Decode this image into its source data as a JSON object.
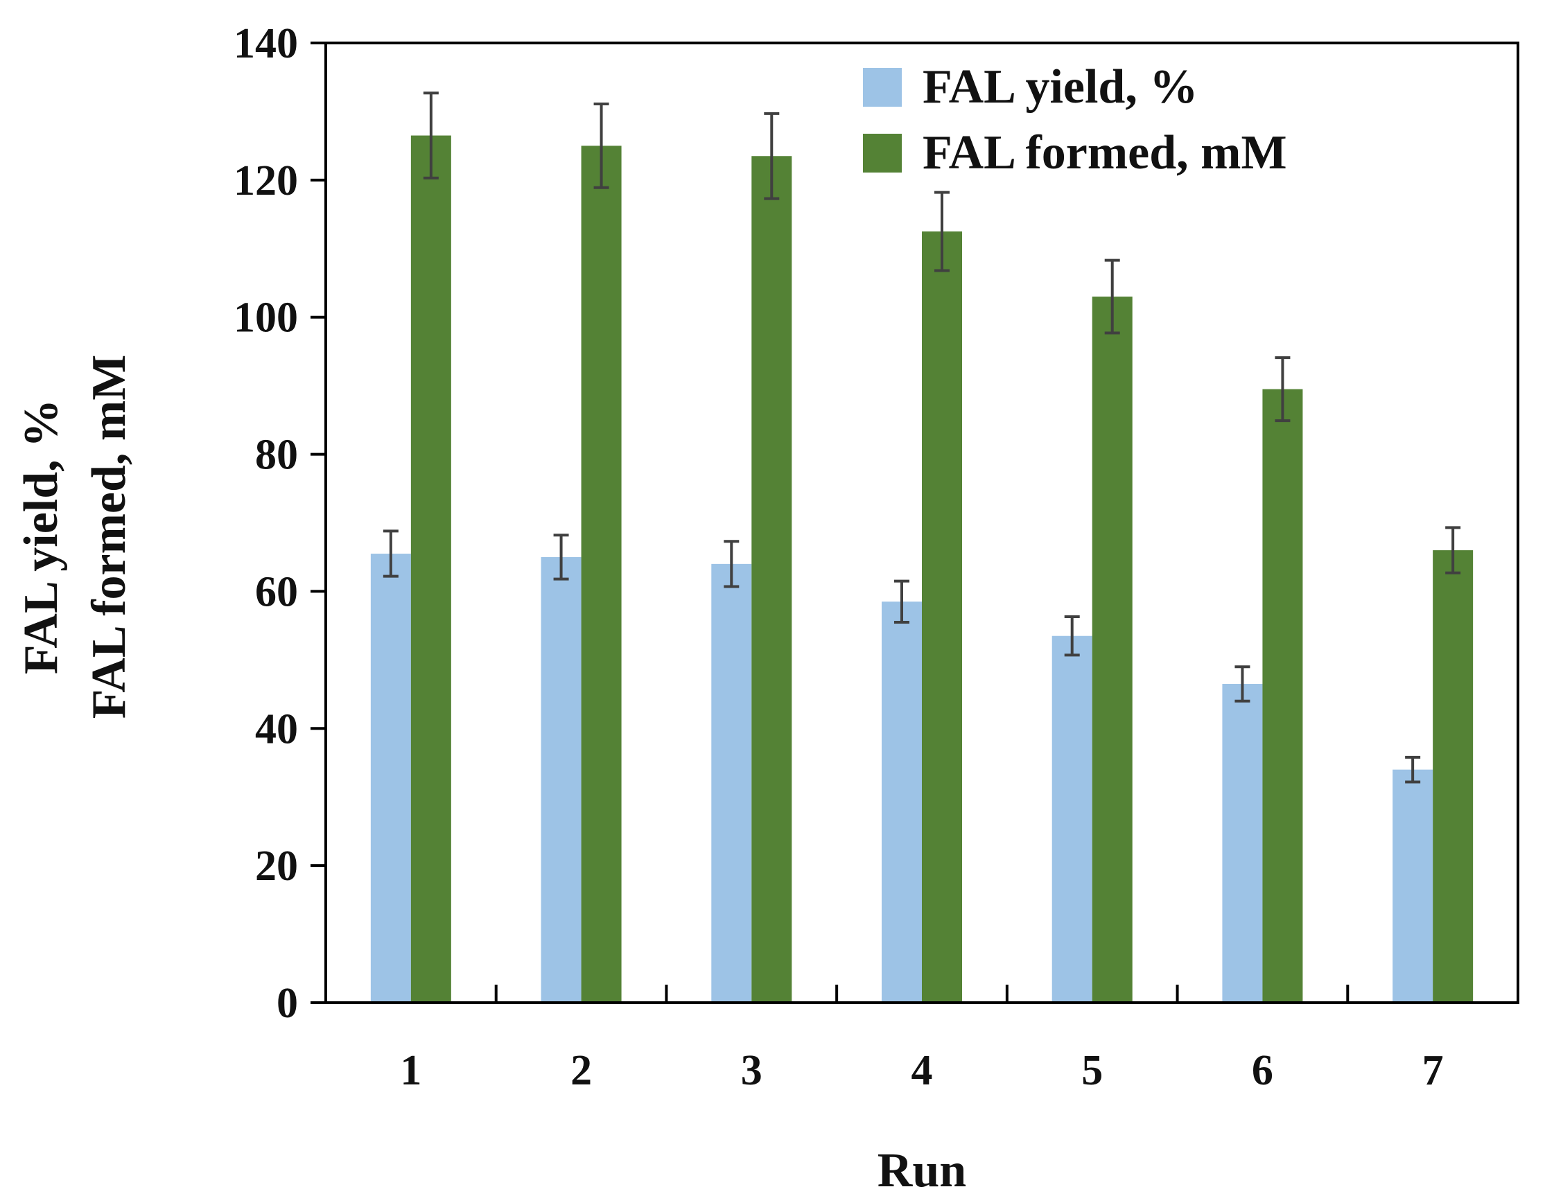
{
  "chart_data": {
    "type": "bar",
    "title": "",
    "xlabel": "Run",
    "ylabel_lines": [
      "FAL yield, %",
      "FAL formed, mM"
    ],
    "categories": [
      "1",
      "2",
      "3",
      "4",
      "5",
      "6",
      "7"
    ],
    "ylim": [
      0,
      140
    ],
    "yticks": [
      "0",
      "20",
      "40",
      "60",
      "80",
      "100",
      "120",
      "140"
    ],
    "legend_position": "top-right",
    "series": [
      {
        "name": "FAL yield, %",
        "color": "#9DC3E6",
        "values": [
          65.5,
          65,
          64,
          58.5,
          53.5,
          46.5,
          34
        ],
        "errors": [
          3.3,
          3.2,
          3.3,
          3.0,
          2.8,
          2.5,
          1.8
        ]
      },
      {
        "name": "FAL formed, mM",
        "color": "#548235",
        "values": [
          126.5,
          125,
          123.5,
          112.5,
          103,
          89.5,
          66
        ],
        "errors": [
          6.2,
          6.1,
          6.2,
          5.7,
          5.3,
          4.6,
          3.3
        ]
      }
    ]
  }
}
